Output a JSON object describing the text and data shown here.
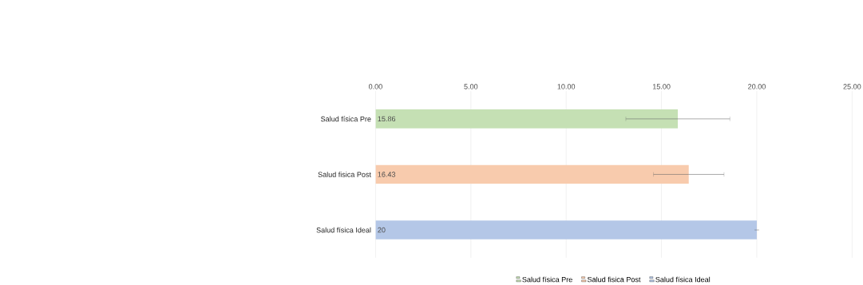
{
  "chart_data": {
    "type": "bar",
    "orientation": "horizontal",
    "categories": [
      "Salud física Pre",
      "Salud fisica  Post",
      "Salud física Ideal"
    ],
    "series": [
      {
        "name": "Salud física Pre",
        "color": "#c5e0b4",
        "values": [
          15.86,
          null,
          null
        ],
        "errors": [
          2.73,
          null,
          null
        ]
      },
      {
        "name": "Salud fisica  Post",
        "color": "#f8cbad",
        "values": [
          null,
          16.43,
          null
        ],
        "errors": [
          null,
          1.85,
          null
        ]
      },
      {
        "name": "Salud física Ideal",
        "color": "#b4c7e7",
        "values": [
          null,
          null,
          20
        ],
        "errors": [
          null,
          null,
          0
        ]
      }
    ],
    "xlim": [
      0,
      25
    ],
    "xticks": [
      {
        "value": 0,
        "label": "0.00"
      },
      {
        "value": 5,
        "label": "5.00"
      },
      {
        "value": 10,
        "label": "10.00"
      },
      {
        "value": 15,
        "label": "15.00"
      },
      {
        "value": 20,
        "label": "20.00"
      },
      {
        "value": 25,
        "label": "25.00"
      }
    ],
    "grid": "x",
    "legend": "bottom",
    "data_labels": true
  }
}
